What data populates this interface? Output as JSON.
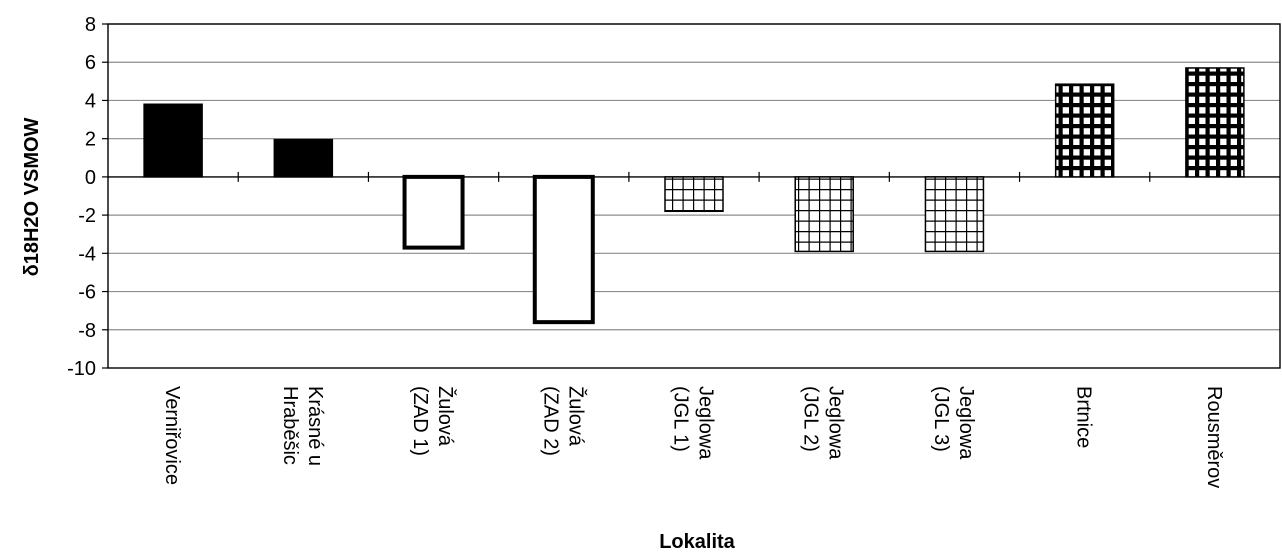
{
  "chart_data": {
    "type": "bar",
    "xlabel": "Lokalita",
    "ylabel": "δ18H2O VSMOW",
    "ylim": [
      -10,
      8
    ],
    "yticks": [
      8,
      6,
      4,
      2,
      0,
      -2,
      -4,
      -6,
      -8,
      -10
    ],
    "grid": true,
    "legend": "none",
    "categories": [
      [
        "Verniřovice"
      ],
      [
        "Krásné u",
        "Hraběšic"
      ],
      [
        "Žulová",
        "(ZAD 1)"
      ],
      [
        "Žulová",
        "(ZAD 2)"
      ],
      [
        "Jeglowa",
        "(JGL 1)"
      ],
      [
        "Jeglowa",
        "(JGL 2)"
      ],
      [
        "Jeglowa",
        "(JGL 3)"
      ],
      [
        "Brtnice"
      ],
      [
        "Rousměrov"
      ]
    ],
    "values": [
      3.8,
      1.95,
      -3.7,
      -7.6,
      -1.8,
      -3.9,
      -3.9,
      4.85,
      5.7
    ],
    "fills": [
      "solid",
      "solid",
      "hollow",
      "hollow",
      "grid",
      "grid",
      "grid",
      "grid-dark",
      "grid-dark"
    ],
    "colors": {
      "bar": "#000000",
      "gridline": "#8c8c8c",
      "axis": "#000000"
    }
  }
}
